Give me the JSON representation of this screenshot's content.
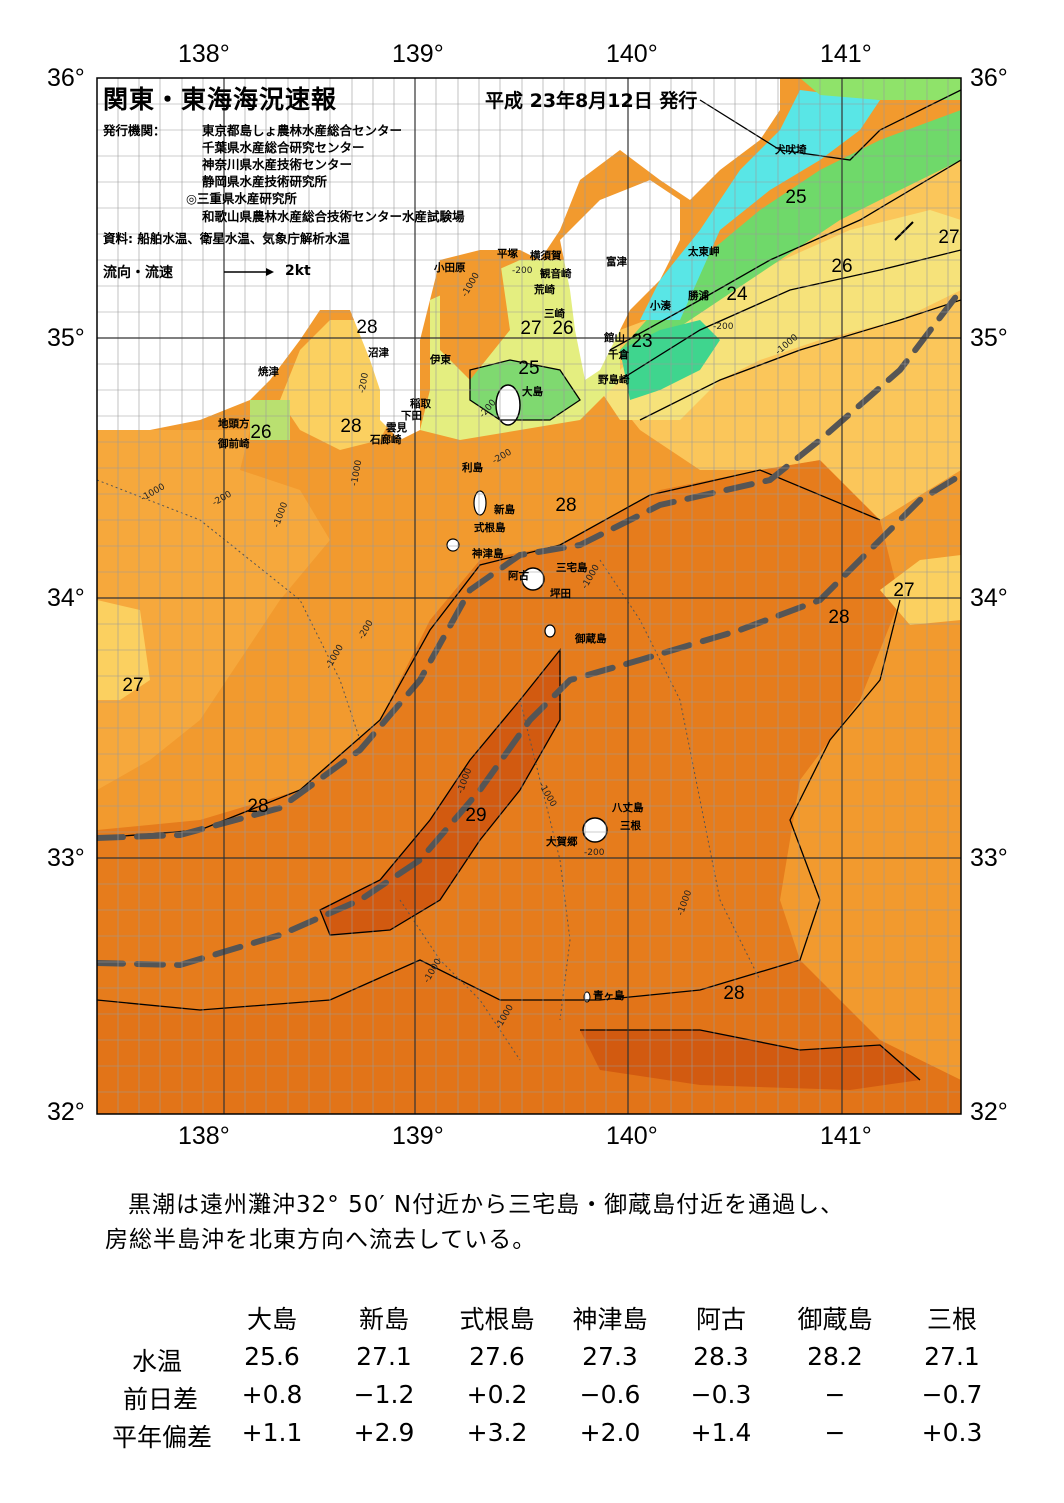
{
  "map": {
    "title": "関東・東海海況速報",
    "date": "平成 23年8月12日 発行",
    "publisher_label": "発行機関：",
    "organizations": [
      "東京都島しょ農林水産総合センター",
      "千葉県水産総合研究センター",
      "神奈川県水産技術センター",
      "静岡県水産技術研究所",
      "◎三重県水産研究所",
      "和歌山県農林水産総合技術センター水産試験場"
    ],
    "sources": "資料: 船舶水温、衛星水温、気象庁解析水温",
    "flow_legend": "流向・流速",
    "flow_scale": "2kt",
    "lon_labels": [
      "138°",
      "139°",
      "140°",
      "141°"
    ],
    "lat_labels": [
      "36°",
      "35°",
      "34°",
      "33°",
      "32°"
    ],
    "place_names": {
      "inubosaki": "犬吠埼",
      "taitomisaki": "太東岬",
      "katsuura": "勝浦",
      "kominato": "小湊",
      "futtsu": "富津",
      "tateyama": "館山",
      "chikura": "千倉",
      "nojimazaki": "野島崎",
      "yokosuka": "横須賀",
      "kannonzaki": "観音崎",
      "arasaki": "荒崎",
      "misaki": "三崎",
      "hiratsuka": "平塚",
      "odawara": "小田原",
      "numazu": "沼津",
      "ito": "伊東",
      "yaizu": "焼津",
      "jitozaki": "地頭方",
      "omaezaki": "御前崎",
      "inatori": "稲取",
      "shimoda": "下田",
      "kumomi": "雲見",
      "irozaki": "石廊崎",
      "oshima": "大島",
      "toshima": "利島",
      "niijima": "新島",
      "shikinejima": "式根島",
      "kozushima": "神津島",
      "ako": "阿古",
      "miyakejima": "三宅島",
      "tsubota": "坪田",
      "mikurajima": "御蔵島",
      "hachijojima": "八丈島",
      "mitsune": "三根",
      "okago": "大賀郷",
      "aogashima": "青ヶ島"
    },
    "isotherm_labels": [
      "25",
      "26",
      "27",
      "28",
      "29",
      "23",
      "24"
    ],
    "depth_labels": [
      "-200",
      "-1000"
    ],
    "colors": {
      "t23": "#3fd58e",
      "t24": "#59e6e6",
      "t25": "#6fd96a",
      "t26": "#d9ee7a",
      "t27": "#fbc65a",
      "t28": "#f29a2e",
      "t28b": "#e67c1c",
      "t29": "#d25a10",
      "kuroshio": "#555555",
      "land": "#ffffff"
    }
  },
  "summary": {
    "line1": "黒潮は遠州灘沖32° 50′ N付近から三宅島・御蔵島付近を通過し、",
    "line2": "房総半島沖を北東方向へ流去している。"
  },
  "table": {
    "columns": [
      "大島",
      "新島",
      "式根島",
      "神津島",
      "阿古",
      "御蔵島",
      "三根"
    ],
    "rows": [
      {
        "label": "水温",
        "values": [
          "25.6",
          "27.1",
          "27.6",
          "27.3",
          "28.3",
          "28.2",
          "27.1"
        ]
      },
      {
        "label": "前日差",
        "values": [
          "+0.8",
          "−1.2",
          "+0.2",
          "−0.6",
          "−0.3",
          "−",
          "−0.7"
        ]
      },
      {
        "label": "平年偏差",
        "values": [
          "+1.1",
          "+2.9",
          "+3.2",
          "+2.0",
          "+1.4",
          "−",
          "+0.3"
        ]
      }
    ]
  }
}
